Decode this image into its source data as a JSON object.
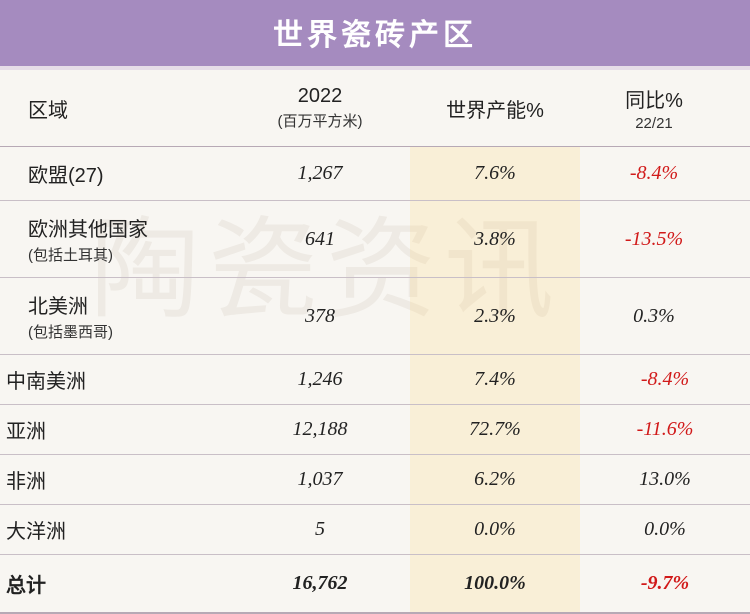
{
  "title": "世界瓷砖产区",
  "watermark": "陶瓷资讯",
  "columns": {
    "region": "区域",
    "value": "2022",
    "value_sub": "(百万平方米)",
    "share": "世界产能%",
    "yoy": "同比%",
    "yoy_sub": "22/21"
  },
  "rows": [
    {
      "region": "欧盟(27)",
      "sub": "",
      "value": "1,267",
      "share": "7.6%",
      "yoy": "-8.4%",
      "yoy_neg": true,
      "short": false
    },
    {
      "region": "欧洲其他国家",
      "sub": "(包括土耳其)",
      "value": "641",
      "share": "3.8%",
      "yoy": "-13.5%",
      "yoy_neg": true,
      "short": false
    },
    {
      "region": "北美洲",
      "sub": "(包括墨西哥)",
      "value": "378",
      "share": "2.3%",
      "yoy": "0.3%",
      "yoy_neg": false,
      "short": false
    },
    {
      "region": "中南美洲",
      "sub": "",
      "value": "1,246",
      "share": "7.4%",
      "yoy": "-8.4%",
      "yoy_neg": true,
      "short": true
    },
    {
      "region": "亚洲",
      "sub": "",
      "value": "12,188",
      "share": "72.7%",
      "yoy": "-11.6%",
      "yoy_neg": true,
      "short": true
    },
    {
      "region": "非洲",
      "sub": "",
      "value": "1,037",
      "share": "6.2%",
      "yoy": "13.0%",
      "yoy_neg": false,
      "short": true
    },
    {
      "region": "大洋洲",
      "sub": "",
      "value": "5",
      "share": "0.0%",
      "yoy": "0.0%",
      "yoy_neg": false,
      "short": true
    }
  ],
  "total": {
    "region": "总计",
    "value": "16,762",
    "share": "100.0%",
    "yoy": "-9.7%",
    "yoy_neg": true
  }
}
